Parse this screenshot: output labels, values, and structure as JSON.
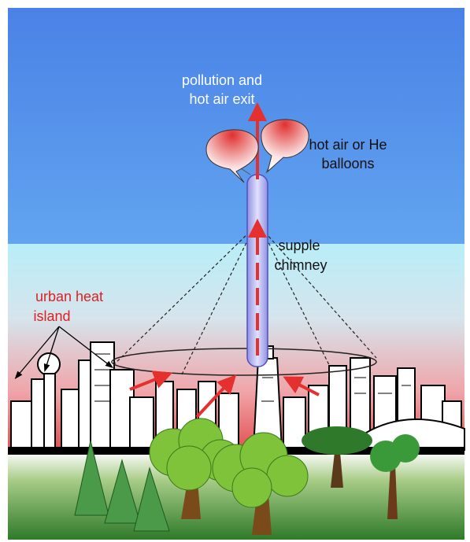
{
  "labels": {
    "exit": [
      "pollution and",
      "hot air exit"
    ],
    "balloons": [
      "hot air or He",
      "balloons"
    ],
    "chimney": [
      "supple",
      "chimney"
    ],
    "heat_island": [
      "urban heat",
      "island"
    ]
  }
}
